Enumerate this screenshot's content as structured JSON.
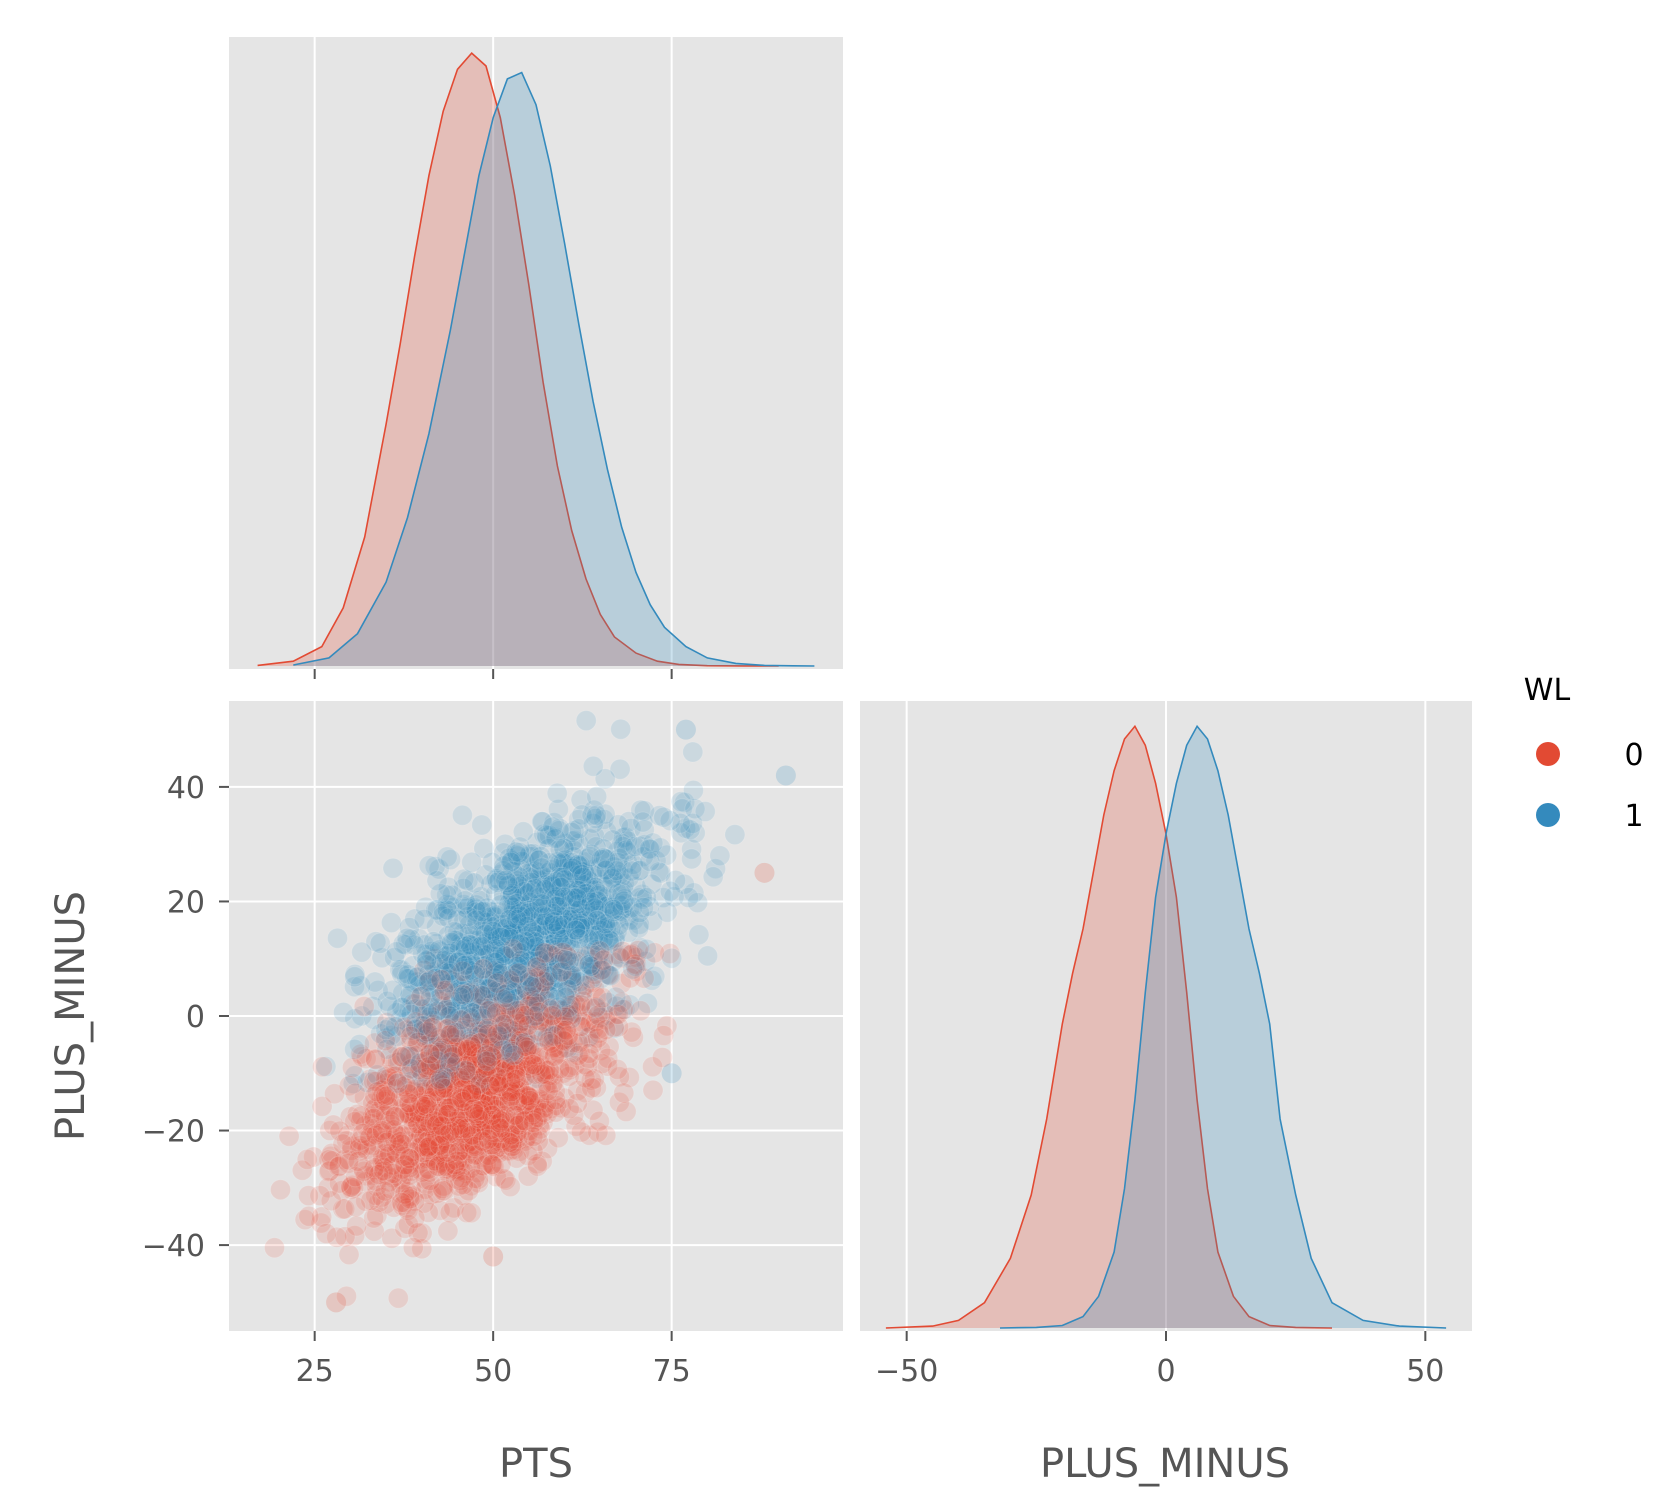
{
  "colors": {
    "wl0": "#E24A33",
    "wl1": "#348ABD",
    "panel_bg": "#E5E5E5",
    "grid": "#FFFFFF",
    "tick_text": "#555555"
  },
  "legend": {
    "title": "WL",
    "entries": [
      {
        "label": "0",
        "color": "#E24A33"
      },
      {
        "label": "1",
        "color": "#348ABD"
      }
    ]
  },
  "chart_data": [
    {
      "panel": "PTS density (top-left diagonal)",
      "type": "area",
      "x_ticks": [
        25,
        50,
        75
      ],
      "xlim": [
        13,
        99
      ],
      "xlabel": "",
      "ylabel": "",
      "grid": true,
      "series": [
        {
          "name": "0",
          "x": [
            17,
            22,
            26,
            29,
            32,
            35,
            37,
            39,
            41,
            43,
            45,
            47,
            49,
            51,
            53,
            55,
            57,
            59,
            61,
            63,
            65,
            67,
            70,
            73,
            76,
            80,
            85,
            90
          ],
          "y": [
            0.0002,
            0.0015,
            0.006,
            0.018,
            0.04,
            0.075,
            0.1,
            0.127,
            0.152,
            0.172,
            0.185,
            0.19,
            0.186,
            0.17,
            0.146,
            0.118,
            0.088,
            0.062,
            0.042,
            0.027,
            0.016,
            0.009,
            0.004,
            0.0015,
            0.0005,
            0.0001,
            3e-05,
            0
          ]
        },
        {
          "name": "1",
          "x": [
            22,
            27,
            31,
            35,
            38,
            41,
            44,
            46,
            48,
            50,
            52,
            54,
            56,
            58,
            60,
            62,
            64,
            66,
            68,
            70,
            72,
            74,
            77,
            80,
            84,
            88,
            92,
            95
          ],
          "y": [
            0.0003,
            0.0025,
            0.01,
            0.026,
            0.046,
            0.072,
            0.104,
            0.128,
            0.152,
            0.17,
            0.182,
            0.184,
            0.174,
            0.155,
            0.131,
            0.106,
            0.082,
            0.061,
            0.043,
            0.029,
            0.019,
            0.012,
            0.006,
            0.0025,
            0.0008,
            0.0002,
            5e-05,
            0
          ]
        }
      ]
    },
    {
      "panel": "PTS vs PLUS_MINUS (bottom-left)",
      "type": "scatter",
      "xlabel": "PTS",
      "ylabel": "PLUS_MINUS",
      "x_ticks": [
        25,
        50,
        75
      ],
      "y_ticks": [
        40,
        20,
        0,
        -20,
        -40
      ],
      "xlim": [
        13,
        99
      ],
      "ylim": [
        -55,
        55
      ],
      "grid": true,
      "point_alpha": 0.15,
      "series": [
        {
          "name": "0",
          "distribution": {
            "mean_x": 47,
            "mean_y": -13,
            "sd_x": 9.2,
            "sd_y": 10.5,
            "correlation": 0.55
          }
        },
        {
          "name": "1",
          "distribution": {
            "mean_x": 55,
            "mean_y": 13,
            "sd_x": 9.2,
            "sd_y": 10.5,
            "correlation": 0.55
          }
        }
      ],
      "notable_points": [
        {
          "x": 28,
          "y": -50,
          "series": "0"
        },
        {
          "x": 50,
          "y": -42,
          "series": "0"
        },
        {
          "x": 91,
          "y": 42,
          "series": "1"
        },
        {
          "x": 77,
          "y": 50,
          "series": "1"
        },
        {
          "x": 88,
          "y": 25,
          "series": "0"
        },
        {
          "x": 75,
          "y": -10,
          "series": "1"
        }
      ]
    },
    {
      "panel": "PLUS_MINUS density (bottom-right diagonal)",
      "type": "area",
      "xlabel": "PLUS_MINUS",
      "ylabel": "",
      "x_ticks": [
        -50,
        0,
        50
      ],
      "xlim": [
        -59,
        59
      ],
      "grid": true,
      "series": [
        {
          "name": "0",
          "x": [
            -54,
            -45,
            -40,
            -35,
            -30,
            -26,
            -23,
            -20,
            -18,
            -16,
            -14,
            -12,
            -10,
            -8,
            -6,
            -4,
            -2,
            0,
            2,
            4,
            6,
            8,
            10,
            13,
            16,
            20,
            25,
            32
          ],
          "y": [
            0,
            0.0003,
            0.0012,
            0.004,
            0.011,
            0.021,
            0.033,
            0.048,
            0.056,
            0.063,
            0.072,
            0.081,
            0.088,
            0.093,
            0.095,
            0.092,
            0.086,
            0.078,
            0.068,
            0.053,
            0.036,
            0.022,
            0.012,
            0.005,
            0.0018,
            0.0004,
            0.0001,
            0
          ]
        },
        {
          "name": "1",
          "x": [
            -32,
            -25,
            -20,
            -16,
            -13,
            -10,
            -8,
            -6,
            -4,
            -2,
            0,
            2,
            4,
            6,
            8,
            10,
            12,
            14,
            16,
            18,
            20,
            22,
            25,
            28,
            32,
            38,
            45,
            54
          ],
          "y": [
            0,
            0.0001,
            0.0004,
            0.0018,
            0.005,
            0.012,
            0.022,
            0.036,
            0.053,
            0.068,
            0.078,
            0.086,
            0.092,
            0.095,
            0.093,
            0.088,
            0.081,
            0.072,
            0.063,
            0.056,
            0.048,
            0.033,
            0.021,
            0.011,
            0.004,
            0.0012,
            0.0003,
            0
          ]
        }
      ]
    }
  ]
}
